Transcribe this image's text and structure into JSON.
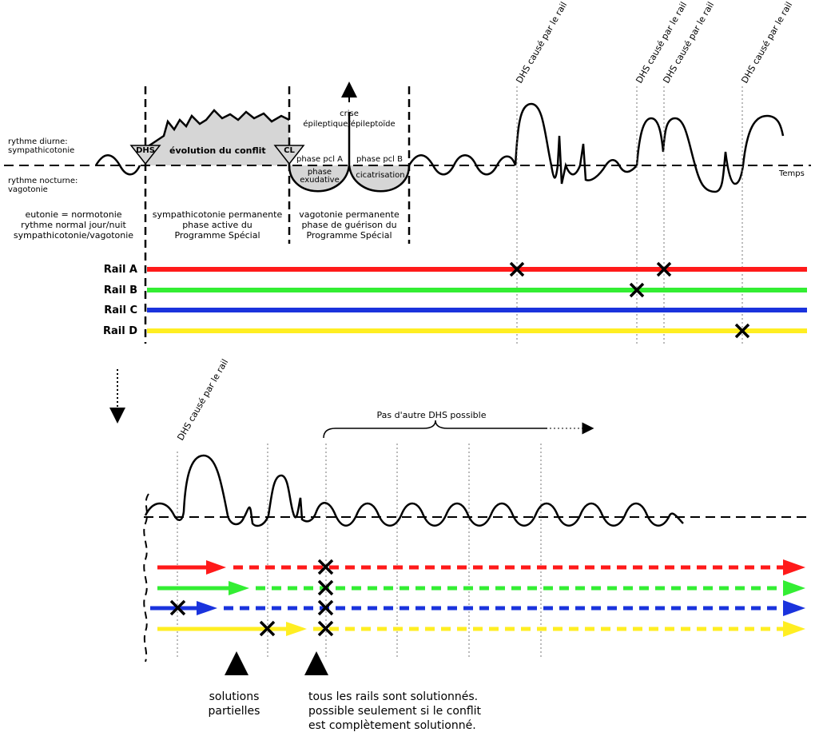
{
  "top": {
    "left_labels": {
      "diurne_1": "rythme diurne:",
      "diurne_2": "sympathicotonie",
      "nocturne_1": "rythme nocturne:",
      "nocturne_2": "vagotonie"
    },
    "temps": "Temps",
    "dhs_box": "DHS",
    "cl_box": "CL",
    "evolution": "évolution du conflit",
    "crise_1": "crise",
    "crise_2": "épileptique/épileptoïde",
    "phase_a": "phase pcl A",
    "phase_b": "phase pcl B",
    "exsudative_1": "phase",
    "exsudative_2": "exudative",
    "cicatrisation": "cicatrisation",
    "col1": [
      "eutonie = normotonie",
      "rythme normal jour/nuit",
      "sympathicotonie/vagotonie"
    ],
    "col2": [
      "sympathicotonie permanente",
      "phase active du",
      "Programme Spécial"
    ],
    "col3": [
      "vagotonie permanente",
      "phase de guérison du",
      "Programme Spécial"
    ],
    "dhs_rail_label": "DHS causé par le rail",
    "rails": [
      {
        "label": "Rail A",
        "color": "#ff1a1a"
      },
      {
        "label": "Rail B",
        "color": "#33ee33"
      },
      {
        "label": "Rail C",
        "color": "#1a33dd"
      },
      {
        "label": "Rail D",
        "color": "#ffee22"
      }
    ]
  },
  "bottom": {
    "dhs_rail_label": "DHS causé par le rail",
    "pas_autre": "Pas d'autre DHS possible",
    "solutions": [
      "solutions",
      "partielles"
    ],
    "tous": [
      "tous les rails sont solutionnés.",
      "possible seulement si le conflit",
      "est complètement solutionné."
    ],
    "arrow_colors": [
      "#ff1a1a",
      "#33ee33",
      "#1a33dd",
      "#ffee22"
    ]
  }
}
